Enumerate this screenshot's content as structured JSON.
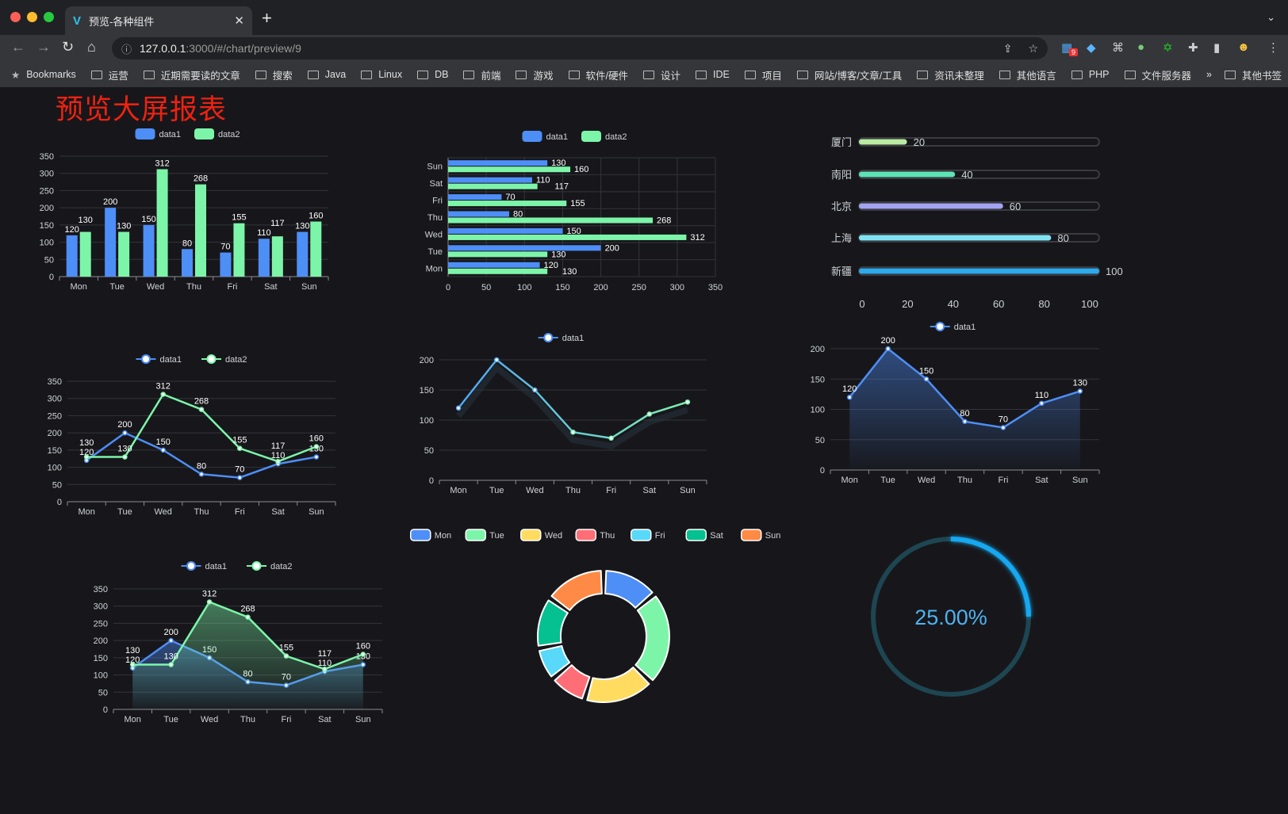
{
  "browser": {
    "tab_title": "预览-各种组件",
    "url_host": "127.0.0.1",
    "url_rest": ":3000/#/chart/preview/9",
    "extension_badge": "9",
    "bookmarks": [
      "Bookmarks",
      "运营",
      "近期需要读的文章",
      "搜索",
      "Java",
      "Linux",
      "DB",
      "前端",
      "游戏",
      "软件/硬件",
      "设计",
      "IDE",
      "项目",
      "网站/博客/文章/工具",
      "资讯未整理",
      "其他语言",
      "PHP",
      "文件服务器"
    ],
    "more": "»",
    "other_bookmarks": "其他书签"
  },
  "page": {
    "title": "预览大屏报表",
    "title_color": "#ee2211",
    "background": "#17171b"
  },
  "colors": {
    "data1": "#4e8ef7",
    "data2": "#7df5a9",
    "grid": "#33343a",
    "axis_text": "#cfd2d8"
  },
  "chart_data": [
    {
      "type": "bar",
      "legend": [
        "data1",
        "data2"
      ],
      "categories": [
        "Mon",
        "Tue",
        "Wed",
        "Thu",
        "Fri",
        "Sat",
        "Sun"
      ],
      "series": [
        {
          "name": "data1",
          "values": [
            120,
            200,
            150,
            80,
            70,
            110,
            130
          ]
        },
        {
          "name": "data2",
          "values": [
            130,
            130,
            312,
            268,
            155,
            117,
            160
          ]
        }
      ],
      "ylim": [
        0,
        350
      ],
      "yticks": [
        0,
        50,
        100,
        150,
        200,
        250,
        300,
        350
      ],
      "grid": true,
      "legend_position": "top"
    },
    {
      "type": "bar",
      "orientation": "horizontal",
      "legend": [
        "data1",
        "data2"
      ],
      "categories": [
        "Mon",
        "Tue",
        "Wed",
        "Thu",
        "Fri",
        "Sat",
        "Sun"
      ],
      "series": [
        {
          "name": "data1",
          "values": [
            120,
            200,
            150,
            80,
            70,
            110,
            130
          ]
        },
        {
          "name": "data2",
          "values": [
            130,
            130,
            312,
            268,
            155,
            117,
            160
          ]
        }
      ],
      "xlim": [
        0,
        350
      ],
      "xticks": [
        0,
        50,
        100,
        150,
        200,
        250,
        300,
        350
      ],
      "grid": true,
      "legend_position": "top"
    },
    {
      "type": "bar",
      "orientation": "horizontal",
      "style": "progress",
      "categories": [
        "厦门",
        "南阳",
        "北京",
        "上海",
        "新疆"
      ],
      "values": [
        20,
        40,
        60,
        80,
        100
      ],
      "colors": [
        "#b8eaa0",
        "#5de3b6",
        "#a3a3f2",
        "#7fe3f2",
        "#2fa9ea"
      ],
      "xlim": [
        0,
        100
      ],
      "xticks": [
        0,
        20,
        40,
        60,
        80,
        100
      ]
    },
    {
      "type": "line",
      "legend": [
        "data1",
        "data2"
      ],
      "categories": [
        "Mon",
        "Tue",
        "Wed",
        "Thu",
        "Fri",
        "Sat",
        "Sun"
      ],
      "series": [
        {
          "name": "data1",
          "values": [
            120,
            200,
            150,
            80,
            70,
            110,
            130
          ]
        },
        {
          "name": "data2",
          "values": [
            130,
            130,
            312,
            268,
            155,
            117,
            160
          ]
        }
      ],
      "ylim": [
        0,
        350
      ],
      "yticks": [
        0,
        50,
        100,
        150,
        200,
        250,
        300,
        350
      ],
      "grid": true
    },
    {
      "type": "line",
      "legend": [
        "data1"
      ],
      "categories": [
        "Mon",
        "Tue",
        "Wed",
        "Thu",
        "Fri",
        "Sat",
        "Sun"
      ],
      "series": [
        {
          "name": "data1",
          "values": [
            120,
            200,
            150,
            80,
            70,
            110,
            130
          ]
        }
      ],
      "ylim": [
        0,
        200
      ],
      "yticks": [
        0,
        50,
        100,
        150,
        200
      ],
      "grid": true,
      "gradient": [
        "#4fa6f5",
        "#7ef0b0"
      ]
    },
    {
      "type": "area",
      "legend": [
        "data1"
      ],
      "categories": [
        "Mon",
        "Tue",
        "Wed",
        "Thu",
        "Fri",
        "Sat",
        "Sun"
      ],
      "series": [
        {
          "name": "data1",
          "values": [
            120,
            200,
            150,
            80,
            70,
            110,
            130
          ]
        }
      ],
      "ylim": [
        0,
        200
      ],
      "yticks": [
        0,
        50,
        100,
        150,
        200
      ],
      "grid": true
    },
    {
      "type": "area",
      "legend": [
        "data1",
        "data2"
      ],
      "categories": [
        "Mon",
        "Tue",
        "Wed",
        "Thu",
        "Fri",
        "Sat",
        "Sun"
      ],
      "series": [
        {
          "name": "data1",
          "values": [
            120,
            200,
            150,
            80,
            70,
            110,
            130
          ]
        },
        {
          "name": "data2",
          "values": [
            130,
            130,
            312,
            268,
            155,
            117,
            160
          ]
        }
      ],
      "ylim": [
        0,
        350
      ],
      "yticks": [
        0,
        50,
        100,
        150,
        200,
        250,
        300,
        350
      ],
      "grid": true
    },
    {
      "type": "pie",
      "style": "donut",
      "categories": [
        "Mon",
        "Tue",
        "Wed",
        "Thu",
        "Fri",
        "Sat",
        "Sun"
      ],
      "values": [
        120,
        200,
        150,
        80,
        70,
        110,
        130
      ],
      "colors": [
        "#4e8ef7",
        "#7df5a9",
        "#ffdc60",
        "#ff6e76",
        "#58d9f9",
        "#05c091",
        "#ff8a45"
      ]
    },
    {
      "type": "gauge",
      "value": 25,
      "label": "25.00%",
      "color": "#17a8f0",
      "track_color": "#1d4652"
    }
  ]
}
